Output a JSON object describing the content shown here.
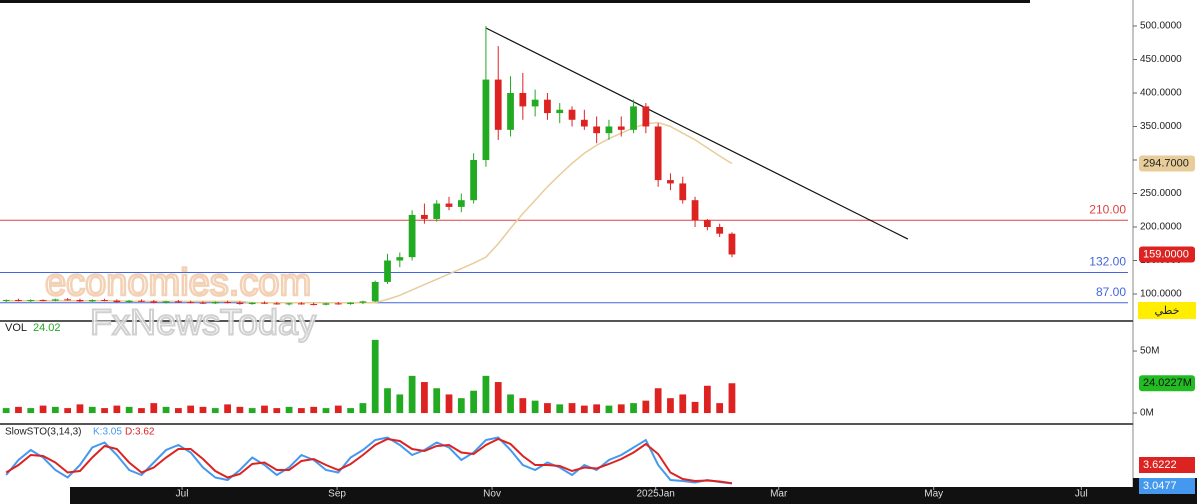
{
  "chart_data": {
    "type": "candlestick",
    "xlim": [
      -0.5,
      91.6
    ],
    "xticks": [
      {
        "value": 14.3,
        "label": "Jul"
      },
      {
        "value": 26.9,
        "label": "Sep"
      },
      {
        "value": 39.5,
        "label": "Nov"
      },
      {
        "value": 52.8,
        "label": "2025Jan"
      },
      {
        "value": 62.8,
        "label": "Mar"
      },
      {
        "value": 75.4,
        "label": "May"
      },
      {
        "value": 87.4,
        "label": "Jul"
      }
    ],
    "ylim": [
      61.2,
      534.3
    ],
    "yticks": [
      {
        "value": 100,
        "label": "100.0000"
      },
      {
        "value": 150,
        "label": "150.0000"
      },
      {
        "value": 200,
        "label": "200.0000"
      },
      {
        "value": 250,
        "label": "250.0000"
      },
      {
        "value": 300,
        "label": "300.0000"
      },
      {
        "value": 350,
        "label": "350.0000"
      },
      {
        "value": 400,
        "label": "400.0000"
      },
      {
        "value": 450,
        "label": "450.0000"
      },
      {
        "value": 500,
        "label": "500.0000"
      }
    ],
    "up_color": "#22aa22",
    "down_color": "#dd2222",
    "open": [
      90,
      91,
      90,
      91,
      90,
      92,
      91,
      89,
      91,
      90,
      88,
      90,
      89,
      87,
      89,
      88,
      87,
      86,
      88,
      87,
      85,
      87,
      86,
      85,
      86,
      85,
      84,
      86,
      85,
      87,
      89,
      118,
      150,
      155,
      218,
      212,
      235,
      230,
      240,
      300,
      420,
      345,
      400,
      380,
      390,
      370,
      375,
      360,
      350,
      340,
      350,
      345,
      380,
      350,
      270,
      265,
      240,
      210,
      200,
      190
    ],
    "high": [
      92,
      93,
      92,
      92,
      93,
      94,
      93,
      92,
      93,
      92,
      91,
      92,
      91,
      90,
      91,
      90,
      89,
      89,
      90,
      89,
      88,
      89,
      88,
      87,
      88,
      87,
      87,
      88,
      88,
      90,
      120,
      160,
      162,
      225,
      235,
      240,
      245,
      250,
      310,
      500,
      470,
      425,
      430,
      405,
      400,
      385,
      380,
      375,
      365,
      360,
      365,
      390,
      385,
      355,
      280,
      275,
      245,
      212,
      205,
      192
    ],
    "low": [
      88,
      89,
      88,
      89,
      89,
      90,
      88,
      88,
      89,
      87,
      87,
      88,
      86,
      86,
      87,
      86,
      85,
      85,
      86,
      84,
      84,
      85,
      84,
      83,
      84,
      83,
      83,
      84,
      84,
      85,
      88,
      115,
      140,
      150,
      205,
      208,
      225,
      222,
      235,
      290,
      330,
      335,
      360,
      365,
      360,
      355,
      350,
      345,
      325,
      330,
      335,
      340,
      340,
      260,
      255,
      235,
      200,
      195,
      185,
      155
    ],
    "close": [
      91,
      90,
      91,
      90,
      92,
      91,
      89,
      91,
      90,
      88,
      90,
      89,
      87,
      89,
      88,
      87,
      86,
      88,
      87,
      85,
      87,
      86,
      85,
      86,
      85,
      84,
      86,
      85,
      87,
      89,
      118,
      150,
      155,
      218,
      212,
      235,
      230,
      240,
      300,
      420,
      345,
      400,
      380,
      390,
      370,
      375,
      360,
      350,
      340,
      350,
      345,
      380,
      350,
      270,
      265,
      240,
      210,
      200,
      190,
      159
    ],
    "last_price_label": "159.0000",
    "ma": {
      "color": "#e8cc9a",
      "label": "294.7000",
      "values": [
        90,
        90,
        90,
        90,
        90,
        90,
        90,
        90,
        90,
        90,
        89,
        89,
        89,
        89,
        89,
        89,
        89,
        89,
        89,
        89,
        87,
        87,
        87,
        87,
        87,
        87,
        87,
        87,
        87,
        87,
        87,
        92,
        98,
        106,
        114,
        122,
        130,
        138,
        146,
        155,
        175,
        198,
        220,
        240,
        260,
        278,
        295,
        310,
        322,
        332,
        340,
        348,
        354,
        356,
        350,
        340,
        330,
        318,
        306,
        294.7
      ]
    },
    "trendline": {
      "x": [
        39,
        73.3
      ],
      "y": [
        497,
        182
      ]
    },
    "levels": [
      {
        "value": 210,
        "label": "210.00",
        "color": "#e04040"
      },
      {
        "value": 132,
        "label": "132.00",
        "color": "#4466dd"
      },
      {
        "value": 87,
        "label": "87.00",
        "color": "#4466dd"
      }
    ],
    "mode_label": "خطي",
    "watermarks": [
      "economies.com",
      "FxNewsToday"
    ],
    "volume": {
      "title": "VOL",
      "value_text": "24.02",
      "tag": "24.0227M",
      "ylim": [
        -5.6,
        72.6
      ],
      "yticks": [
        {
          "value": 0,
          "label": "0M"
        },
        {
          "value": 50,
          "label": "50M"
        }
      ],
      "values": [
        4,
        5,
        4,
        6,
        5,
        4,
        7,
        5,
        4,
        6,
        5,
        4,
        8,
        5,
        4,
        6,
        5,
        4,
        7,
        5,
        4,
        6,
        4,
        5,
        4,
        5,
        4,
        6,
        4,
        8,
        59,
        20,
        15,
        30,
        25,
        20,
        15,
        12,
        18,
        30,
        25,
        15,
        12,
        10,
        8,
        7,
        8,
        6,
        7,
        6,
        7,
        8,
        10,
        20,
        12,
        15,
        9,
        22,
        8,
        24.0227
      ]
    },
    "stoch": {
      "title": "SlowSTO(3,14,3)",
      "k_text": "K:3.05",
      "d_text": "D:3.62",
      "ylim": [
        0,
        100
      ],
      "k_color": "#4499ee",
      "d_color": "#dd2222",
      "k": [
        20,
        50,
        70,
        55,
        30,
        15,
        40,
        75,
        85,
        60,
        30,
        20,
        45,
        70,
        80,
        65,
        35,
        15,
        10,
        30,
        55,
        40,
        20,
        35,
        60,
        50,
        30,
        25,
        55,
        70,
        90,
        95,
        80,
        60,
        70,
        85,
        75,
        50,
        65,
        90,
        95,
        70,
        40,
        30,
        45,
        35,
        20,
        40,
        30,
        50,
        60,
        75,
        90,
        40,
        10,
        8,
        5,
        10,
        6,
        3.0477
      ],
      "d": [
        25,
        40,
        60,
        58,
        45,
        25,
        28,
        55,
        78,
        72,
        45,
        25,
        35,
        55,
        72,
        72,
        52,
        28,
        15,
        22,
        42,
        45,
        30,
        30,
        48,
        52,
        40,
        30,
        42,
        60,
        80,
        92,
        88,
        72,
        68,
        78,
        80,
        65,
        62,
        80,
        92,
        82,
        58,
        40,
        40,
        38,
        28,
        35,
        33,
        42,
        52,
        65,
        82,
        62,
        25,
        12,
        8,
        9,
        7,
        3.6222
      ]
    }
  }
}
